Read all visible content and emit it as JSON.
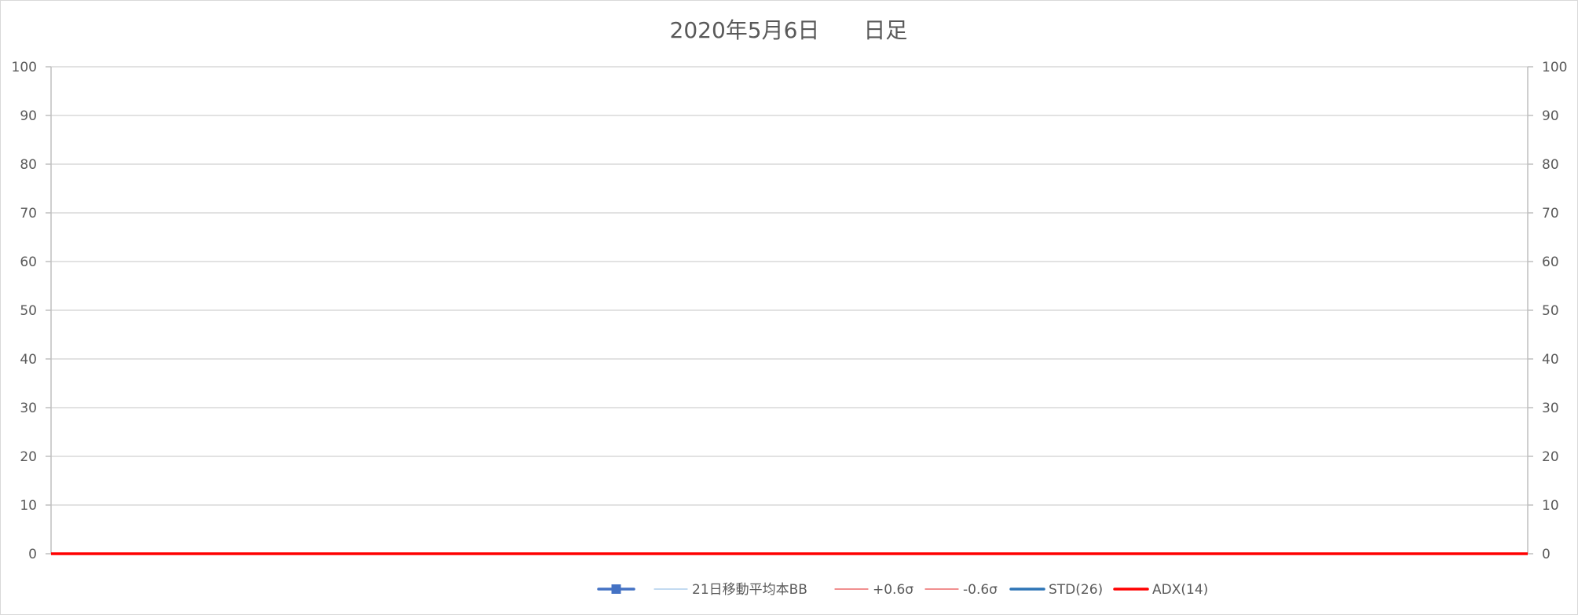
{
  "chart_data": {
    "type": "line",
    "title": "2020年5月6日　　日足",
    "xlabel": "",
    "ylabel": "",
    "ylim": [
      0,
      100
    ],
    "y_ticks": [
      "0",
      "10",
      "20",
      "30",
      "40",
      "50",
      "60",
      "70",
      "80",
      "90",
      "100"
    ],
    "y2lim": [
      0,
      100
    ],
    "y2_ticks": [
      "0",
      "10",
      "20",
      "30",
      "40",
      "50",
      "60",
      "70",
      "80",
      "90",
      "100"
    ],
    "grid": true,
    "legend_position": "bottom",
    "series": [
      {
        "name": "",
        "color": "#4472c4",
        "marker": "square",
        "values": []
      },
      {
        "name": "21日移動平均本BB",
        "color": "#9dc3e6",
        "values": []
      },
      {
        "name": "+0.6σ",
        "color": "#e84c4c",
        "values": []
      },
      {
        "name": "-0.6σ",
        "color": "#e84c4c",
        "values": []
      },
      {
        "name": "STD(26)",
        "color": "#2e75b6",
        "values": []
      },
      {
        "name": "ADX(14)",
        "color": "#ff0000",
        "values": [
          0,
          0
        ]
      }
    ]
  }
}
